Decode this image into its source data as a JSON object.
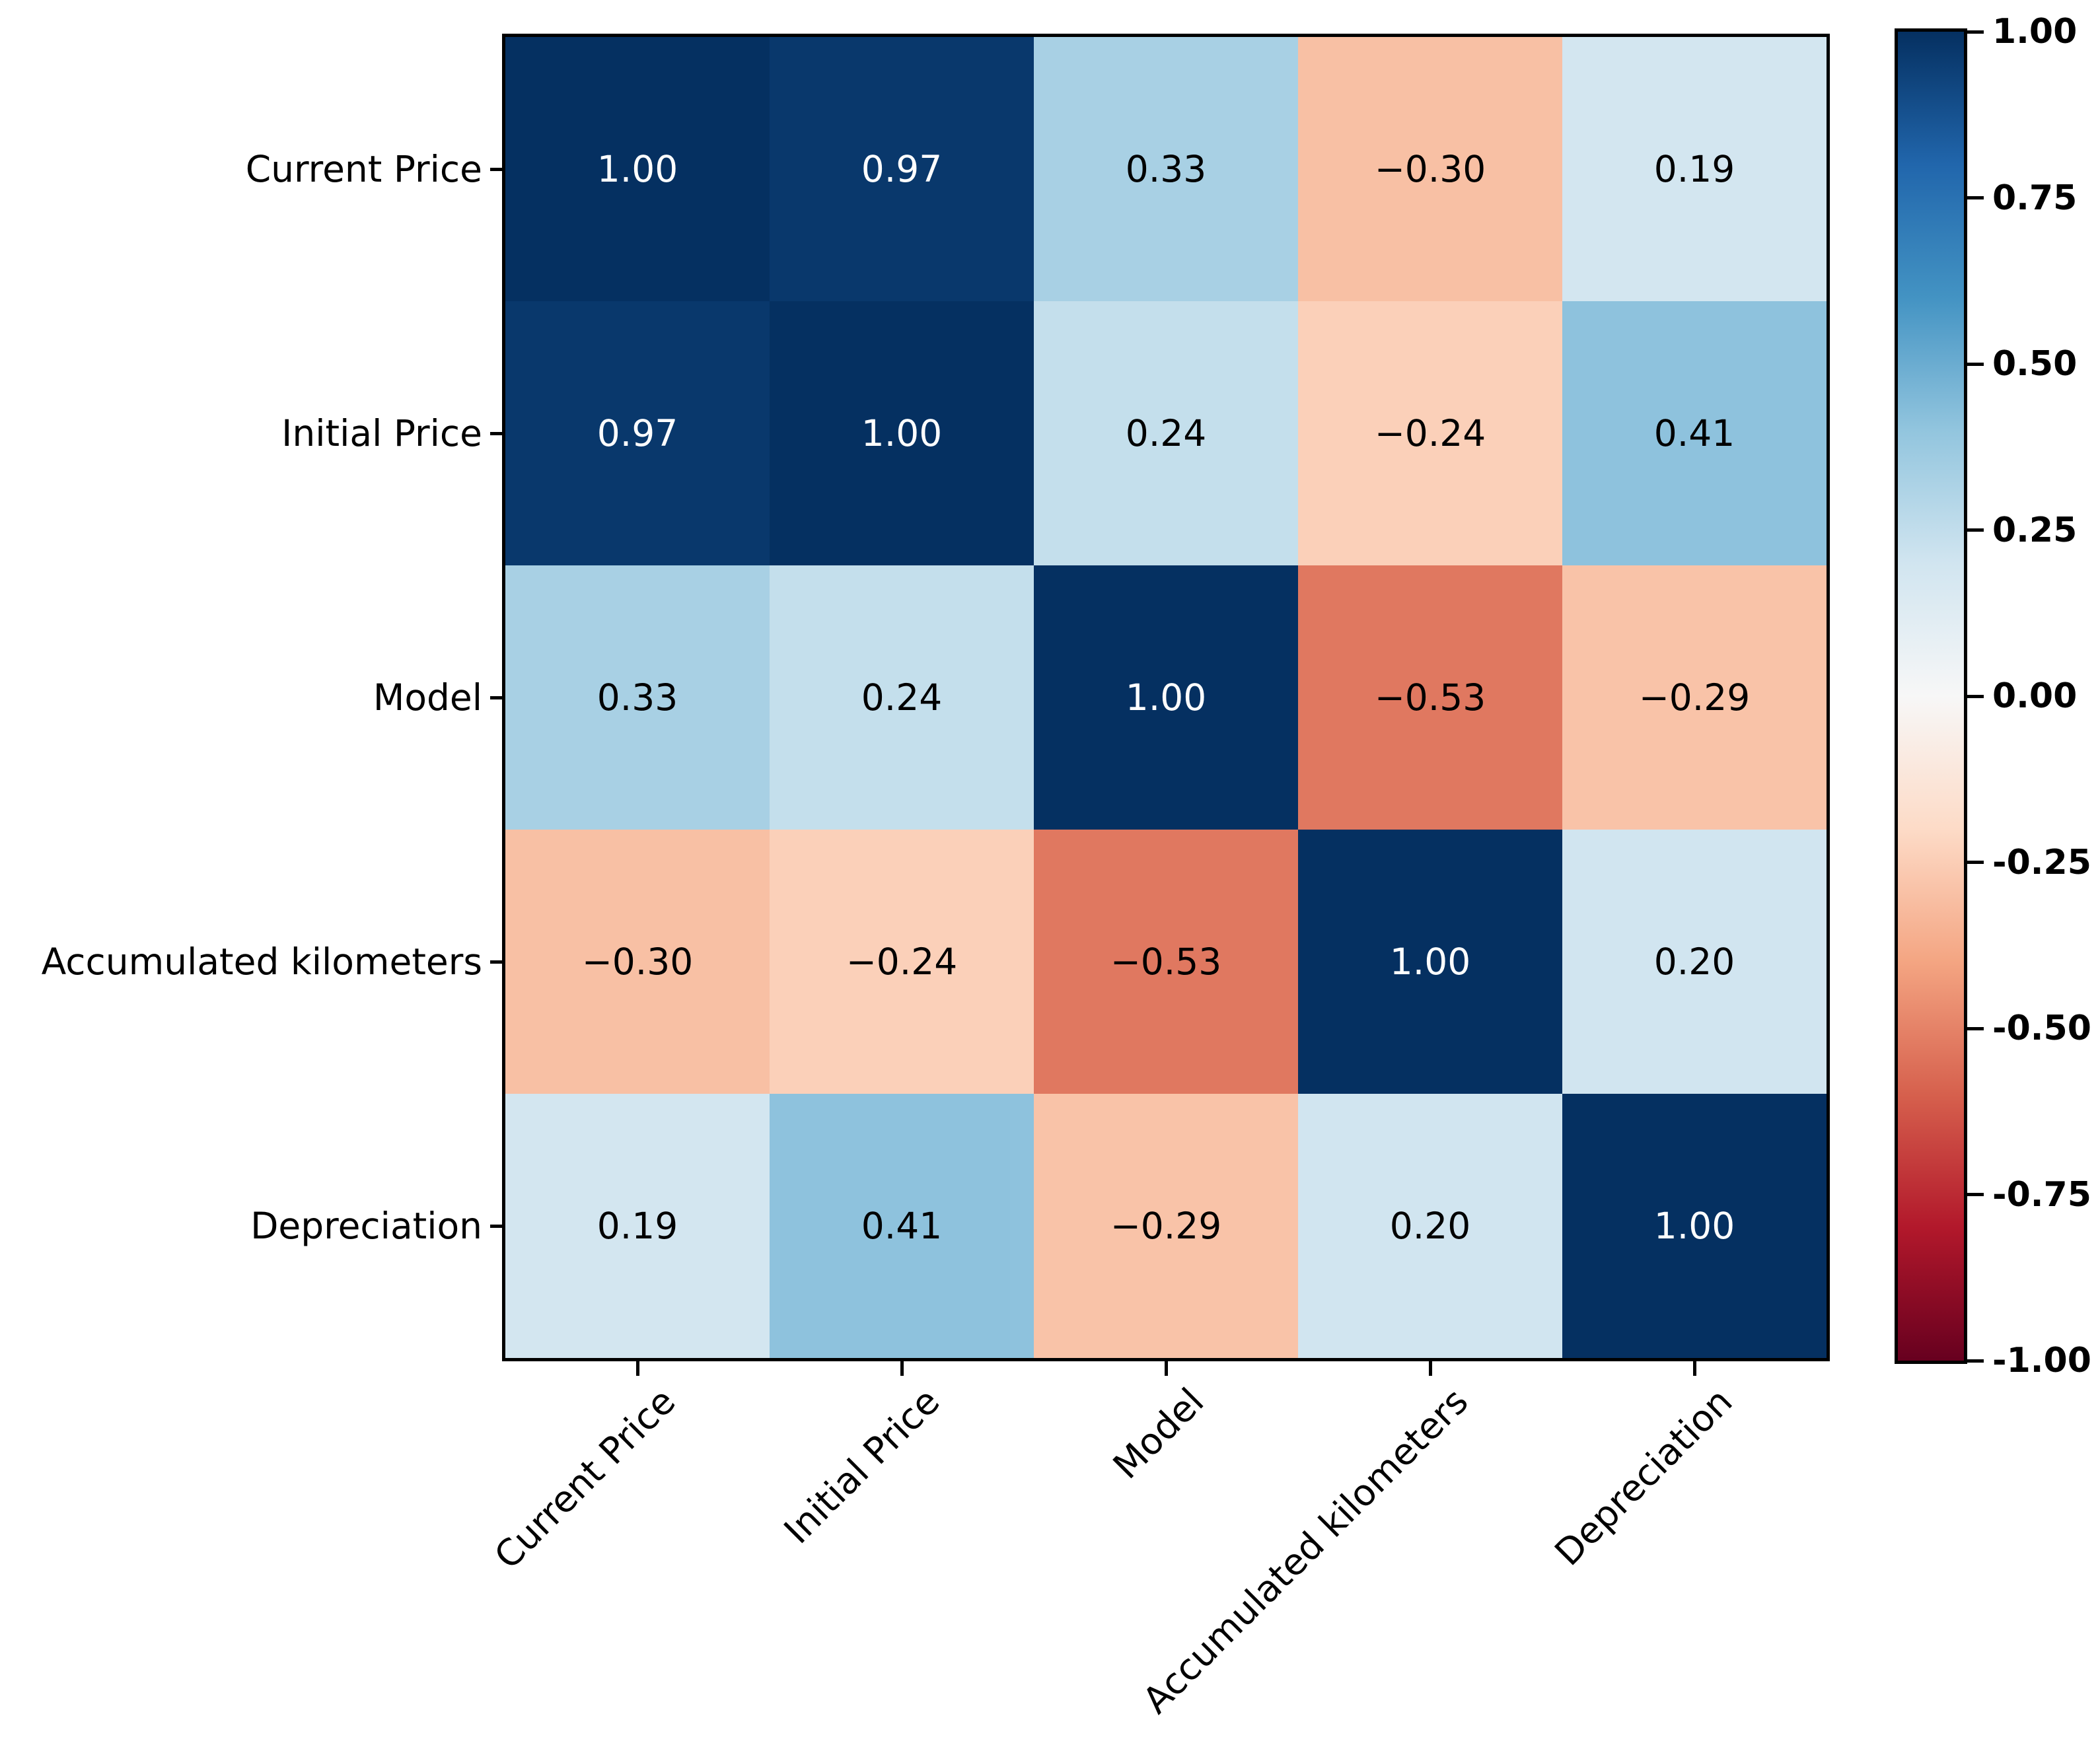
{
  "chart_data": {
    "type": "heatmap",
    "title": "",
    "subtitle": "",
    "categories_x": [
      "Current Price",
      "Initial Price",
      "Model",
      "Accumulated kilometers",
      "Depreciation"
    ],
    "categories_y": [
      "Current Price",
      "Initial Price",
      "Model",
      "Accumulated kilometers",
      "Depreciation"
    ],
    "matrix": [
      [
        1.0,
        0.97,
        0.33,
        -0.3,
        0.19
      ],
      [
        0.97,
        1.0,
        0.24,
        -0.24,
        0.41
      ],
      [
        0.33,
        0.24,
        1.0,
        -0.53,
        -0.29
      ],
      [
        -0.3,
        -0.24,
        -0.53,
        1.0,
        0.2
      ],
      [
        0.19,
        0.41,
        -0.29,
        0.2,
        1.0
      ]
    ],
    "cell_labels": [
      [
        "1.00",
        "0.97",
        "0.33",
        "−0.30",
        "0.19"
      ],
      [
        "0.97",
        "1.00",
        "0.24",
        "−0.24",
        "0.41"
      ],
      [
        "0.33",
        "0.24",
        "1.00",
        "−0.53",
        "−0.29"
      ],
      [
        "−0.30",
        "−0.24",
        "−0.53",
        "1.00",
        "0.20"
      ],
      [
        "0.19",
        "0.41",
        "−0.29",
        "0.20",
        "1.00"
      ]
    ],
    "cell_colors": [
      [
        "#053061",
        "#09386c",
        "#a8d0e4",
        "#f8c0a4",
        "#d3e6f0"
      ],
      [
        "#09386c",
        "#053061",
        "#c4dfec",
        "#fbd0b9",
        "#8ec2dd"
      ],
      [
        "#a8d0e4",
        "#c4dfec",
        "#053061",
        "#e07860",
        "#f9c3a8"
      ],
      [
        "#f8c0a4",
        "#fbd0b9",
        "#e07860",
        "#053061",
        "#d1e5f0"
      ],
      [
        "#d3e6f0",
        "#8ec2dd",
        "#f9c3a8",
        "#d1e5f0",
        "#053061"
      ]
    ],
    "value_text_colors": {
      "light": "#ffffff",
      "dark": "#000000",
      "light_threshold": 0.9
    },
    "colormap": {
      "name": "RdBu",
      "stops_top_to_bottom": [
        "#053061",
        "#2166ac",
        "#4393c3",
        "#92c5de",
        "#d1e5f0",
        "#f7f7f7",
        "#fddbc7",
        "#f4a582",
        "#d6604d",
        "#b2182b",
        "#67001f"
      ]
    },
    "vmin": -1.0,
    "vmax": 1.0,
    "colorbar": {
      "tick_labels": [
        "1.00",
        "0.75",
        "0.50",
        "0.25",
        "0.00",
        "-0.25",
        "-0.50",
        "-0.75",
        "-1.00"
      ],
      "tick_values": [
        1.0,
        0.75,
        0.5,
        0.25,
        0.0,
        -0.25,
        -0.5,
        -0.75,
        -1.0
      ]
    },
    "axis_color": "#000000",
    "grid": false,
    "legend_position": "colorbar-right"
  }
}
